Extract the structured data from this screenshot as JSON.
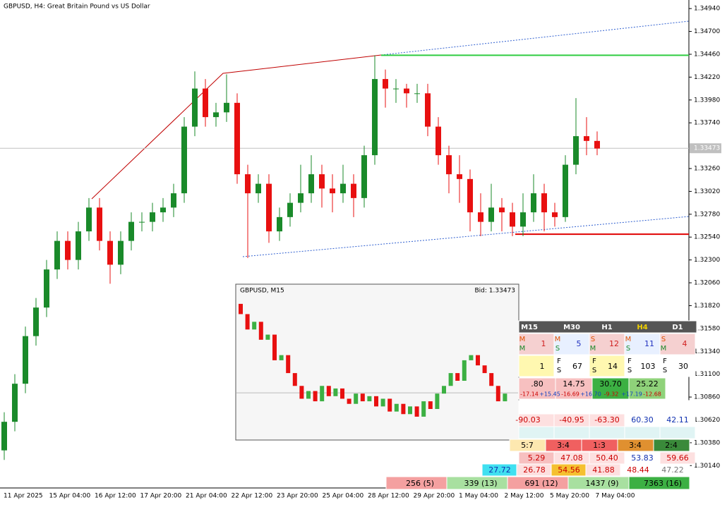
{
  "header": {
    "title": "GBPUSD, H4:  Great Britain Pound vs US Dollar"
  },
  "chart_data": {
    "type": "candlestick",
    "open": [
      1.303,
      1.306,
      1.31,
      1.315,
      1.318,
      1.322,
      1.325,
      1.323,
      1.326,
      1.3285,
      1.325,
      1.3225,
      1.325,
      1.327,
      1.327,
      1.328,
      1.3285,
      1.33,
      1.337,
      1.341,
      1.338,
      1.3385,
      1.3395,
      1.332,
      1.33,
      1.331,
      1.326,
      1.3275,
      1.329,
      1.33,
      1.332,
      1.3305,
      1.33,
      1.331,
      1.3295,
      1.334,
      1.342,
      1.341,
      1.341,
      1.3405,
      1.3405,
      1.337,
      1.334,
      1.332,
      1.3315,
      1.328,
      1.327,
      1.3285,
      1.328,
      1.3265,
      1.328,
      1.33,
      1.328,
      1.3275,
      1.333,
      1.336,
      1.3355
    ],
    "high": [
      1.307,
      1.311,
      1.316,
      1.319,
      1.323,
      1.326,
      1.326,
      1.327,
      1.3295,
      1.3295,
      1.326,
      1.326,
      1.328,
      1.328,
      1.329,
      1.3295,
      1.331,
      1.338,
      1.3428,
      1.342,
      1.3395,
      1.3425,
      1.3405,
      1.333,
      1.332,
      1.332,
      1.3285,
      1.33,
      1.333,
      1.334,
      1.333,
      1.332,
      1.333,
      1.332,
      1.335,
      1.3445,
      1.343,
      1.342,
      1.3415,
      1.3415,
      1.3415,
      1.338,
      1.335,
      1.334,
      1.3325,
      1.33,
      1.331,
      1.3295,
      1.329,
      1.33,
      1.332,
      1.331,
      1.329,
      1.334,
      1.34,
      1.338,
      1.3365
    ],
    "low": [
      1.302,
      1.305,
      1.309,
      1.314,
      1.317,
      1.321,
      1.322,
      1.322,
      1.325,
      1.324,
      1.3205,
      1.3215,
      1.324,
      1.326,
      1.326,
      1.327,
      1.3275,
      1.329,
      1.336,
      1.337,
      1.337,
      1.3375,
      1.331,
      1.3232,
      1.329,
      1.3248,
      1.325,
      1.3265,
      1.328,
      1.329,
      1.3285,
      1.328,
      1.329,
      1.3275,
      1.3285,
      1.333,
      1.339,
      1.3395,
      1.339,
      1.3395,
      1.336,
      1.333,
      1.33,
      1.329,
      1.326,
      1.3255,
      1.326,
      1.326,
      1.3255,
      1.3255,
      1.327,
      1.326,
      1.3265,
      1.327,
      1.332,
      1.334,
      1.334
    ],
    "close": [
      1.306,
      1.31,
      1.315,
      1.318,
      1.322,
      1.325,
      1.323,
      1.326,
      1.3285,
      1.325,
      1.3225,
      1.325,
      1.327,
      1.327,
      1.328,
      1.3285,
      1.33,
      1.337,
      1.341,
      1.338,
      1.3385,
      1.3395,
      1.332,
      1.33,
      1.331,
      1.326,
      1.3275,
      1.329,
      1.33,
      1.332,
      1.3305,
      1.33,
      1.331,
      1.3295,
      1.334,
      1.342,
      1.341,
      1.341,
      1.3405,
      1.3405,
      1.337,
      1.334,
      1.332,
      1.3315,
      1.328,
      1.327,
      1.3285,
      1.328,
      1.3265,
      1.328,
      1.33,
      1.328,
      1.3275,
      1.333,
      1.336,
      1.3355,
      1.3347
    ],
    "ylim": [
      1.2992,
      1.3503
    ],
    "yticks": [
      {
        "value": 1.3494,
        "label": "1.34940"
      },
      {
        "value": 1.347,
        "label": "1.34700"
      },
      {
        "value": 1.3446,
        "label": "1.34460"
      },
      {
        "value": 1.3422,
        "label": "1.34220"
      },
      {
        "value": 1.3398,
        "label": "1.33980"
      },
      {
        "value": 1.3374,
        "label": "1.33740"
      },
      {
        "value": 1.3326,
        "label": "1.33260"
      },
      {
        "value": 1.3302,
        "label": "1.33020"
      },
      {
        "value": 1.3278,
        "label": "1.32780"
      },
      {
        "value": 1.3254,
        "label": "1.32540"
      },
      {
        "value": 1.323,
        "label": "1.32300"
      },
      {
        "value": 1.3206,
        "label": "1.32060"
      },
      {
        "value": 1.3182,
        "label": "1.31820"
      },
      {
        "value": 1.3158,
        "label": "1.31580"
      },
      {
        "value": 1.3134,
        "label": "1.31340"
      },
      {
        "value": 1.311,
        "label": "1.31100"
      },
      {
        "value": 1.3086,
        "label": "1.30860"
      },
      {
        "value": 1.3062,
        "label": "1.30620"
      },
      {
        "value": 1.3038,
        "label": "1.30380"
      },
      {
        "value": 1.3014,
        "label": "1.30140"
      }
    ],
    "current_price": {
      "value": 1.33473,
      "label": "1.33473"
    },
    "levels": [
      {
        "value": 1.3445,
        "color": "#2ecc40"
      },
      {
        "value": 1.3257,
        "color": "#e00000"
      }
    ],
    "x_labels": [
      "11 Apr 2025",
      "15 Apr 04:00",
      "16 Apr 12:00",
      "17 Apr 20:00",
      "21 Apr 04:00",
      "22 Apr 12:00",
      "23 Apr 20:00",
      "25 Apr 04:00",
      "28 Apr 12:00",
      "29 Apr 20:00",
      "1 May 04:00",
      "2 May 12:00",
      "5 May 20:00",
      "7 May 04:00"
    ]
  },
  "inset": {
    "title": "GBPUSD, M15",
    "bid": "Bid: 1.33473",
    "first_open": 1.3382,
    "close": [
      1.3378,
      1.3372,
      1.3375,
      1.3368,
      1.337,
      1.336,
      1.3362,
      1.3355,
      1.335,
      1.3345,
      1.3348,
      1.3344,
      1.335,
      1.3346,
      1.3349,
      1.3345,
      1.3343,
      1.3347,
      1.3344,
      1.3346,
      1.3342,
      1.3345,
      1.334,
      1.3343,
      1.3339,
      1.3342,
      1.3338,
      1.3344,
      1.3341,
      1.3347,
      1.335,
      1.3355,
      1.3352,
      1.336,
      1.3362,
      1.3358,
      1.3355,
      1.335,
      1.3344,
      1.3347
    ],
    "ylim": [
      1.333,
      1.3385
    ]
  },
  "dashboard": {
    "headers": [
      "M15",
      "M30",
      "H1",
      "H4",
      "D1"
    ],
    "signals": [
      {
        "labels": [
          "M",
          "M"
        ],
        "n": "1"
      },
      {
        "labels": [
          "M",
          "S"
        ],
        "n": "5"
      },
      {
        "labels": [
          "S",
          "M"
        ],
        "n": "12"
      },
      {
        "labels": [
          "M",
          "S"
        ],
        "n": "11"
      },
      {
        "labels": [
          "S",
          "M"
        ],
        "n": "4"
      }
    ],
    "strength": [
      {
        "labels": [],
        "n": "1"
      },
      {
        "labels": [
          "F",
          "S"
        ],
        "n": "67"
      },
      {
        "labels": [
          "F",
          "S"
        ],
        "n": "14"
      },
      {
        "labels": [
          "F",
          "S"
        ],
        "n": "103"
      },
      {
        "labels": [
          "F",
          "S"
        ],
        "n": "30"
      }
    ],
    "values": [
      ".80",
      "14.75",
      "30.70",
      "25.22"
    ],
    "changes": [
      "-17.14",
      "+15.45",
      "-16.69",
      "+16.70",
      "-9.32",
      "+17.19",
      "-12.68"
    ],
    "scores": [
      "-90.03",
      "-40.95",
      "-63.30",
      "60.30",
      "42.11"
    ],
    "ratios": [
      "5:7",
      "3:4",
      "1:3",
      "3:4",
      "2:4"
    ],
    "rsi": [
      "5.29",
      "47.08",
      "50.40",
      "53.83",
      "59.66"
    ],
    "rsi2": [
      "27.72",
      "26.78",
      "54.56",
      "41.88",
      "48.44",
      "47.22"
    ],
    "footer": [
      "256 (5)",
      "339 (13)",
      "691 (12)",
      "1437 (9)",
      "7363 (16)"
    ]
  }
}
